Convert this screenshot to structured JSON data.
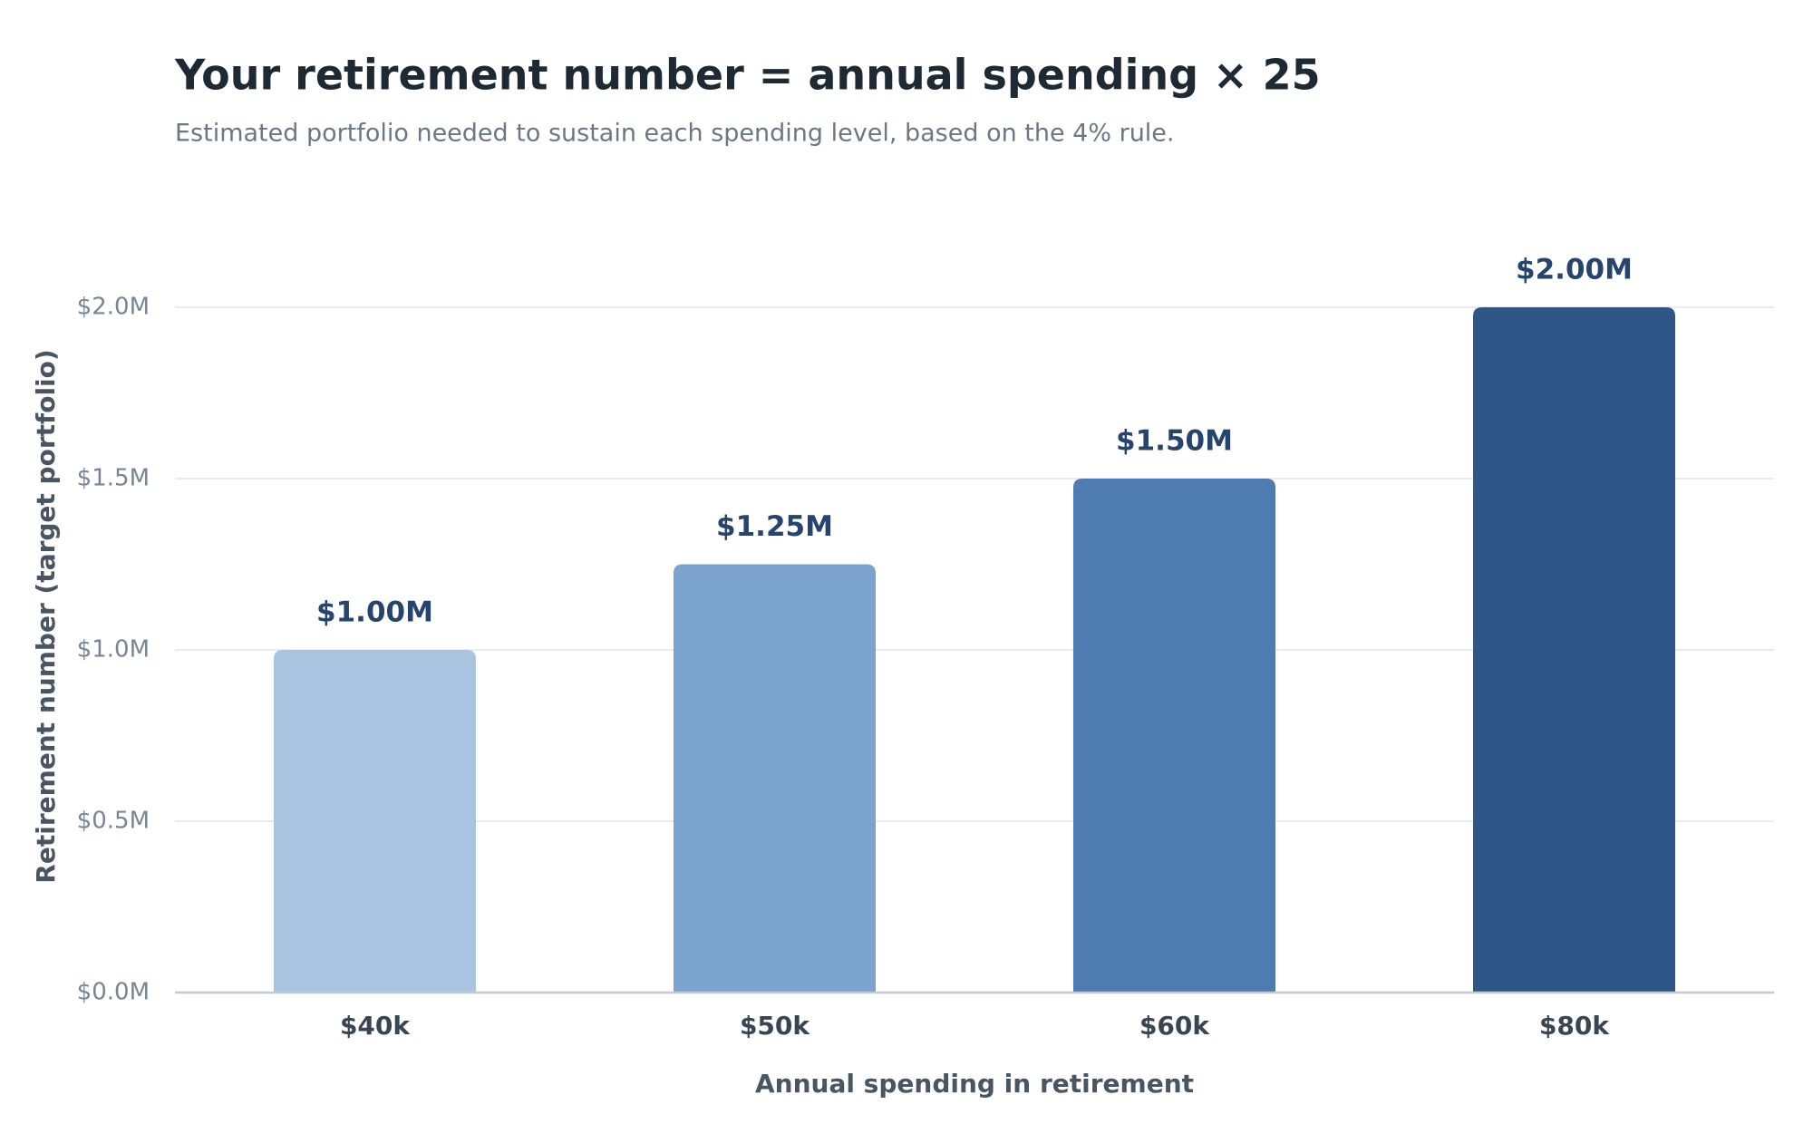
{
  "chart_data": {
    "type": "bar",
    "title": "Your retirement number = annual spending × 25",
    "subtitle": "Estimated portfolio needed to sustain each spending level, based on the 4% rule.",
    "x_label": "Annual spending in retirement",
    "y_label": "Retirement number (target portfolio)",
    "categories": [
      "$40k",
      "$50k",
      "$60k",
      "$80k"
    ],
    "values": [
      1.0,
      1.25,
      1.5,
      2.0
    ],
    "value_labels": [
      "$1.00M",
      "$1.25M",
      "$1.50M",
      "$2.00M"
    ],
    "colors": [
      "#a9c4e0",
      "#7ba3cd",
      "#4e7cb0",
      "#2e5686"
    ],
    "ylim": [
      0,
      2.0
    ],
    "yticks": [
      {
        "value": 0,
        "label": "$0.0M"
      },
      {
        "value": 0.5,
        "label": "$0.5M"
      },
      {
        "value": 1.0,
        "label": "$1.0M"
      },
      {
        "value": 1.5,
        "label": "$1.5M"
      },
      {
        "value": 2.0,
        "label": "$2.0M"
      }
    ],
    "grid": true
  }
}
